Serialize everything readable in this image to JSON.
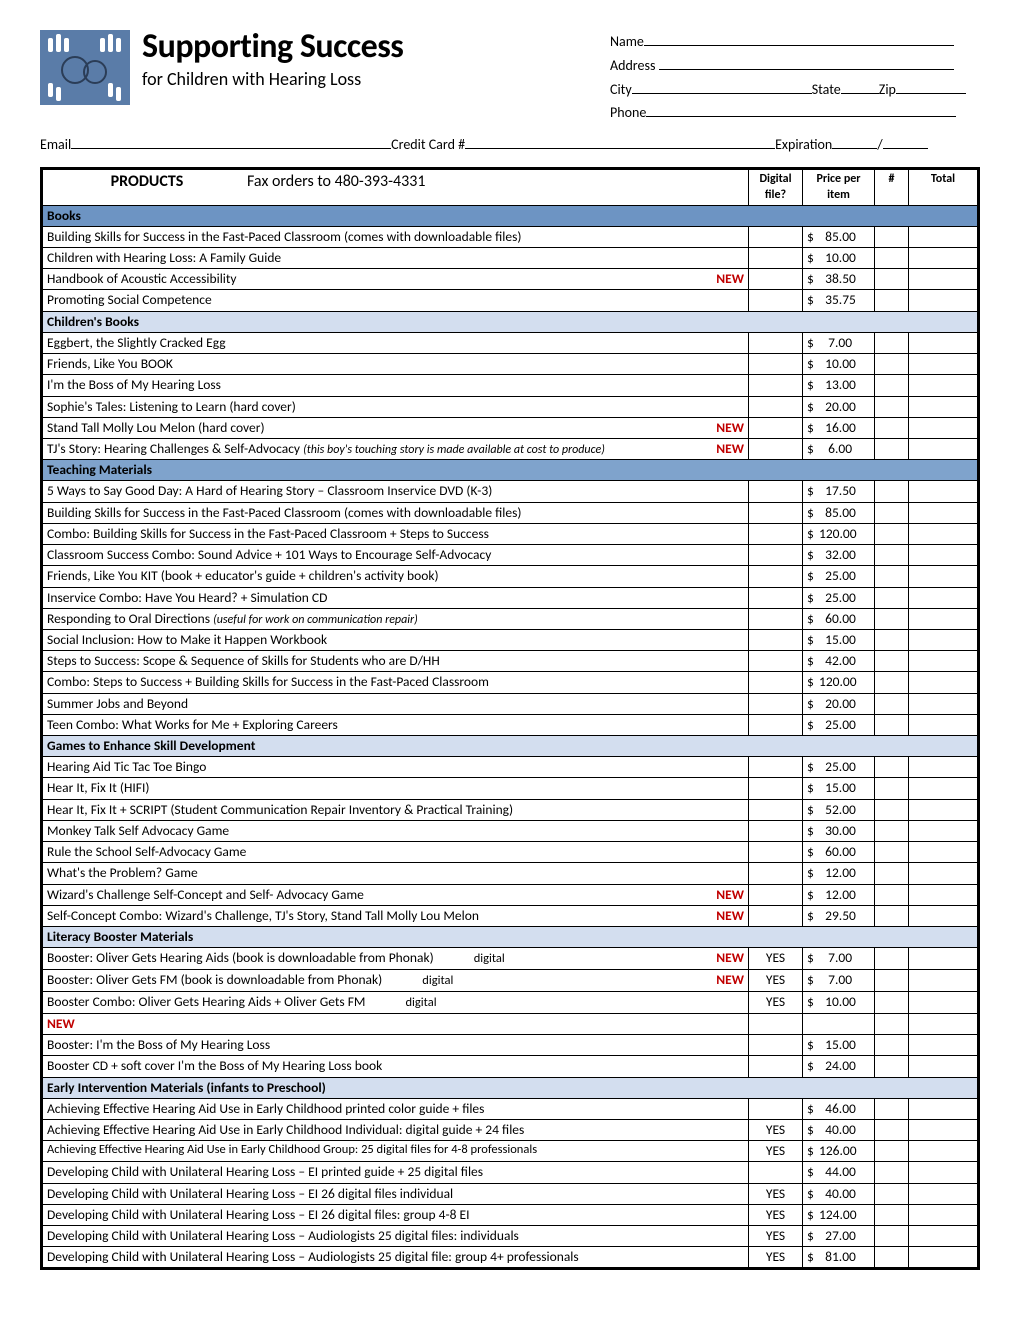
{
  "header": {
    "title": "Supporting Success",
    "subtitle": "for Children with Hearing Loss",
    "logo_bg": "#5a7ca8"
  },
  "customer_fields": {
    "name": "Name",
    "address": "Address",
    "city": "City",
    "state": "State",
    "zip": "Zip",
    "phone": "Phone",
    "email": "Email",
    "cc": "Credit Card #",
    "exp": "Expiration",
    "slash": "/"
  },
  "table_header": {
    "products": "PRODUCTS",
    "fax": "Fax orders to 480-393-4331",
    "digital": "Digital file?",
    "price": "Price per item",
    "qty": "#",
    "total": "Total"
  },
  "new_label": "NEW",
  "yes_label": "YES",
  "sections": [
    {
      "title": "Books",
      "class": "sec-blue",
      "rows": [
        {
          "name": "Building Skills for Success in the Fast-Paced Classroom (comes with downloadable files)",
          "price": "85.00"
        },
        {
          "name": "Children with Hearing Loss: A Family Guide",
          "price": "10.00"
        },
        {
          "name": "Handbook of Acoustic Accessibility",
          "new": true,
          "price": "38.50"
        },
        {
          "name": "Promoting Social Competence",
          "price": "35.75"
        }
      ]
    },
    {
      "title": "Children's Books",
      "class": "sec-ltblue",
      "rows": [
        {
          "name": "Eggbert, the Slightly Cracked Egg",
          "price": "7.00",
          "pad": true
        },
        {
          "name": "Friends, Like You BOOK",
          "price": "10.00"
        },
        {
          "name": "I'm the Boss of My Hearing Loss",
          "price": "13.00"
        },
        {
          "name": "Sophie's Tales: Listening to Learn (hard cover)",
          "price": "20.00"
        },
        {
          "name": "Stand Tall Molly Lou Melon (hard cover)",
          "new": true,
          "price": "16.00"
        },
        {
          "name": "TJ's Story: Hearing Challenges & Self-Advocacy",
          "note": "(this boy's touching story is made available at cost to produce)",
          "new": true,
          "price": "6.00",
          "pad": true
        }
      ]
    },
    {
      "title": "Teaching Materials",
      "class": "sec-midblue",
      "rows": [
        {
          "name": "5 Ways to Say Good Day: A Hard of Hearing Story – Classroom Inservice DVD  (K-3)",
          "price": "17.50"
        },
        {
          "name": "Building Skills for Success in the Fast-Paced Classroom (comes with downloadable files)",
          "price": "85.00"
        },
        {
          "name": "Combo: Building Skills for Success in the Fast-Paced Classroom + Steps to Success",
          "price": "120.00",
          "nopad": true
        },
        {
          "name": "Classroom Success Combo: Sound Advice + 101 Ways to Encourage Self-Advocacy",
          "price": "32.00"
        },
        {
          "name": "Friends, Like You KIT (book + educator's guide + children's activity book)",
          "price": "25.00"
        },
        {
          "name": "Inservice Combo: Have You Heard? + Simulation CD",
          "price": "25.00"
        },
        {
          "name": "Responding to Oral Directions",
          "note": "(useful for work on communication repair)",
          "price": "60.00"
        },
        {
          "name": "Social Inclusion: How to Make it Happen Workbook",
          "price": "15.00"
        },
        {
          "name": "Steps to Success: Scope & Sequence of Skills for Students who are D/HH",
          "price": "42.00"
        },
        {
          "name": "Combo: Steps to Success + Building Skills for Success in the Fast-Paced Classroom",
          "price": "120.00",
          "nopad": true
        },
        {
          "name": "Summer Jobs and Beyond",
          "price": "20.00"
        },
        {
          "name": "Teen Combo: What Works for Me + Exploring Careers",
          "price": "25.00"
        }
      ]
    },
    {
      "title": "Games to Enhance Skill Development",
      "class": "sec-ltblue",
      "rows": [
        {
          "name": "Hearing Aid Tic Tac Toe Bingo",
          "price": "25.00"
        },
        {
          "name": "Hear It, Fix It (HIFI)",
          "price": "15.00"
        },
        {
          "name": "Hear It, Fix It + SCRIPT (Student Communication Repair Inventory & Practical Training)",
          "price": "52.00"
        },
        {
          "name": "Monkey Talk Self Advocacy Game",
          "price": "30.00"
        },
        {
          "name": "Rule the School Self-Advocacy Game",
          "price": "60.00"
        },
        {
          "name": "What's the Problem? Game",
          "price": "12.00"
        },
        {
          "name": "Wizard's Challenge Self-Concept and Self- Advocacy Game",
          "new": true,
          "price": "12.00"
        },
        {
          "name": "Self-Concept Combo: Wizard's Challenge, TJ's Story, Stand Tall Molly Lou Melon",
          "new": true,
          "price": "29.50"
        }
      ]
    },
    {
      "title": "Literacy Booster Materials",
      "class": "sec-ltblue",
      "rows": [
        {
          "name": "Booster: Oliver Gets Hearing Aids (book is downloadable from Phonak)",
          "inlinedigital": "digital",
          "new": true,
          "digital": "YES",
          "price": "7.00",
          "pad": true
        },
        {
          "name": "Booster: Oliver Gets FM (book is downloadable from Phonak)",
          "inlinedigital": "digital",
          "new": true,
          "digital": "YES",
          "price": "7.00",
          "pad": true
        },
        {
          "name": "Booster Combo: Oliver Gets Hearing Aids + Oliver Gets FM",
          "inlinedigital": "digital",
          "digital": "YES",
          "price": "10.00",
          "new_below": true
        },
        {
          "name": "Booster: I'm the Boss of My Hearing Loss",
          "price": "15.00"
        },
        {
          "name": "Booster CD + soft cover I'm the Boss of My Hearing Loss book",
          "price": "24.00"
        }
      ]
    },
    {
      "title": "Early Intervention Materials (infants to Preschool)",
      "class": "sec-ltblue",
      "rows": [
        {
          "name": "Achieving Effective Hearing Aid Use in Early Childhood printed color guide  + files",
          "price": "46.00"
        },
        {
          "name": "Achieving Effective Hearing Aid Use in Early Childhood Individual: digital guide + 24 files",
          "digital": "YES",
          "price": "40.00"
        },
        {
          "name": "Achieving Effective Hearing Aid Use in Early Childhood Group: 25 digital files for 4-8 professionals",
          "digital": "YES",
          "price": "126.00",
          "nopad": true,
          "smallname": true
        },
        {
          "name": "Developing Child with Unilateral Hearing Loss – EI printed guide + 25 digital files",
          "price": "44.00"
        },
        {
          "name": "Developing Child with Unilateral Hearing Loss – EI  26 digital files individual",
          "digital": "YES",
          "price": "40.00"
        },
        {
          "name": "Developing Child with Unilateral Hearing Loss – EI  26 digital files: group 4-8 EI",
          "digital": "YES",
          "price": "124.00",
          "nopad": true
        },
        {
          "name": "Developing Child with Unilateral Hearing Loss – Audiologists 25 digital files: individuals",
          "digital": "YES",
          "price": "27.00"
        },
        {
          "name": "Developing Child with Unilateral Hearing Loss – Audiologists 25 digital file: group 4+ professionals",
          "digital": "YES",
          "price": "81.00"
        }
      ]
    }
  ]
}
